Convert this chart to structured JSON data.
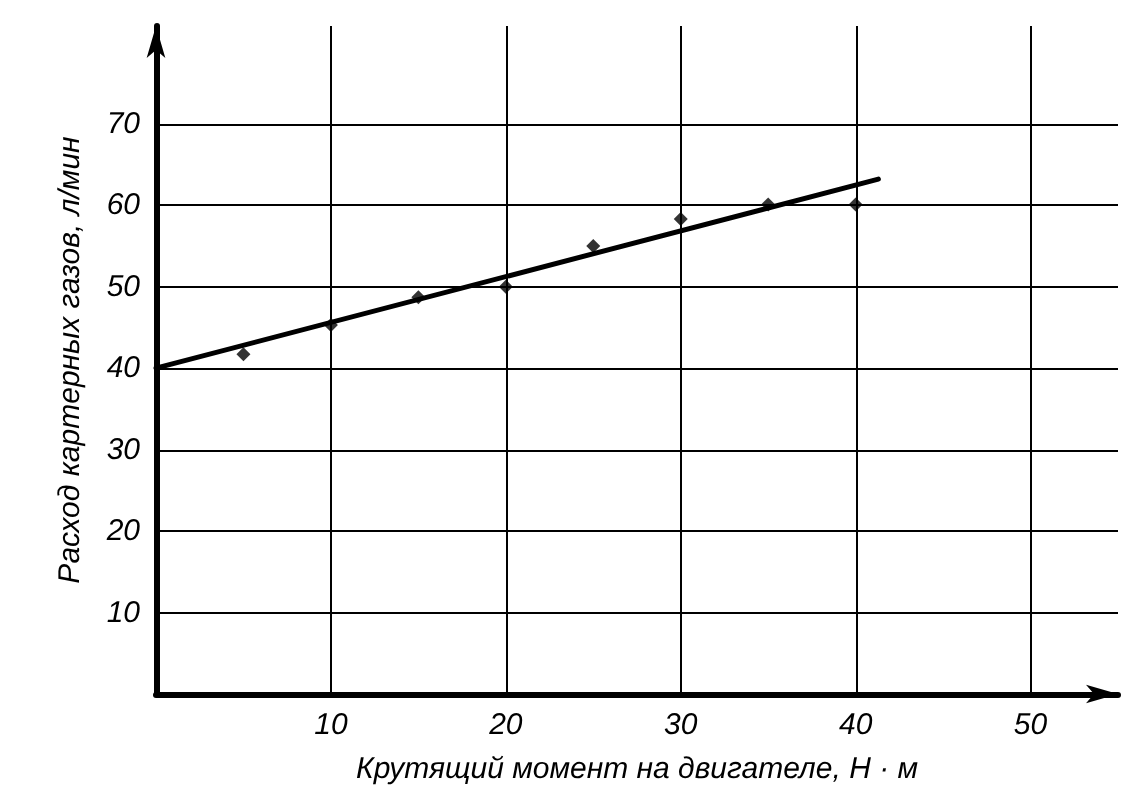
{
  "chart_data": {
    "type": "scatter",
    "xlabel": "Крутящий момент на двигателе, Н · м",
    "ylabel": "Расход картерных газов, л/мин",
    "xlim": [
      0,
      55
    ],
    "ylim": [
      0,
      82
    ],
    "xticks": [
      10,
      20,
      30,
      40,
      50
    ],
    "yticks": [
      10,
      20,
      30,
      40,
      50,
      60,
      70
    ],
    "grid": true,
    "series": [
      {
        "color": "#000000",
        "marker": "diamond",
        "x": [
          5,
          10,
          15,
          20,
          25,
          30,
          35,
          40
        ],
        "values": [
          41.7,
          45.3,
          48.7,
          50,
          55,
          58.3,
          60.1,
          60.1
        ]
      },
      {
        "type": "line",
        "color": "#000000",
        "marker": "none",
        "line_style": "solid",
        "x": [
          0,
          41.3
        ],
        "values": [
          40,
          63.2
        ]
      }
    ]
  }
}
